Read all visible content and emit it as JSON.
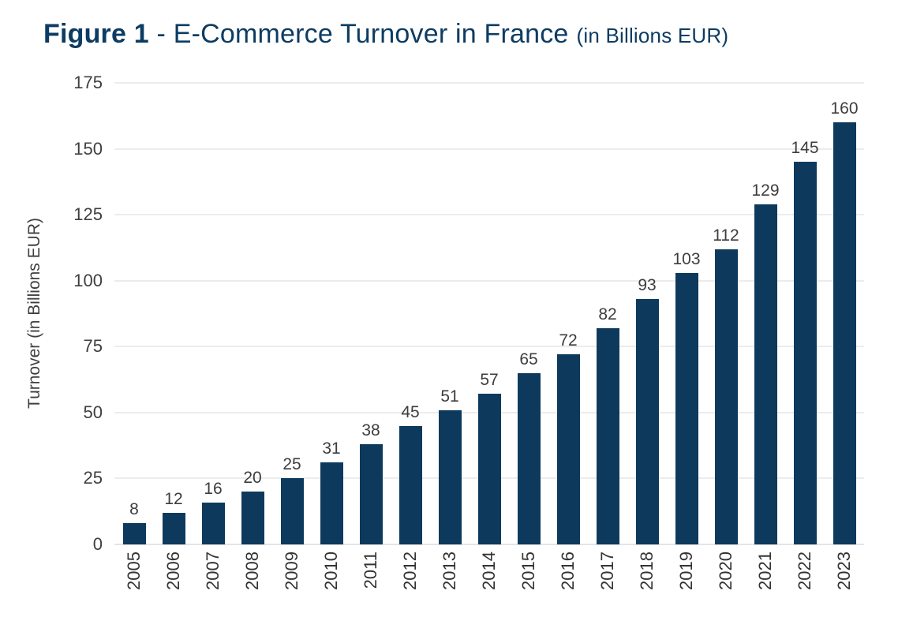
{
  "title": {
    "prefix": "Figure 1",
    "separator": " - ",
    "main": "E-Commerce Turnover in France",
    "suffix": "(in Billions EUR)"
  },
  "chart_data": {
    "type": "bar",
    "title": "Figure 1 - E-Commerce Turnover in France (in Billions EUR)",
    "categories": [
      "2005",
      "2006",
      "2007",
      "2008",
      "2009",
      "2010",
      "2011",
      "2012",
      "2013",
      "2014",
      "2015",
      "2016",
      "2017",
      "2018",
      "2019",
      "2020",
      "2021",
      "2022",
      "2023"
    ],
    "values": [
      8,
      12,
      16,
      20,
      25,
      31,
      38,
      45,
      51,
      57,
      65,
      72,
      82,
      93,
      103,
      112,
      129,
      145,
      160
    ],
    "xlabel": "",
    "ylabel": "Turnover (in Billions EUR)",
    "ylim": [
      0,
      175
    ],
    "yticks": [
      0,
      25,
      50,
      75,
      100,
      125,
      150,
      175
    ],
    "grid": true,
    "legend": "none",
    "value_labels": true,
    "bar_color": "#0d3a5c",
    "title_color": "#0d3c63",
    "gridline_color": "#d9d9d9",
    "label_color": "#3d3d3d"
  }
}
